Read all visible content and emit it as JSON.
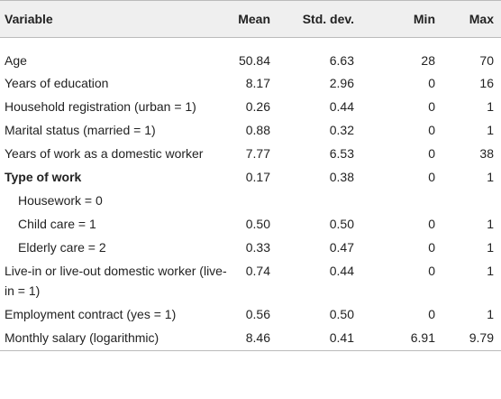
{
  "table": {
    "header": [
      "Variable",
      "Mean",
      "Std. dev.",
      "Min",
      "Max"
    ],
    "rows": [
      [
        "Age",
        "50.84",
        "6.63",
        "28",
        "70"
      ],
      [
        "Years of education",
        "8.17",
        "2.96",
        "0",
        "16"
      ],
      [
        "Household registration (urban = 1)",
        "0.26",
        "0.44",
        "0",
        "1"
      ],
      [
        "Marital status (married = 1)",
        "0.88",
        "0.32",
        "0",
        "1"
      ],
      [
        "Years of work as a domestic worker",
        "7.77",
        "6.53",
        "0",
        "38"
      ],
      [
        "Type of work",
        "0.17",
        "0.38",
        "0",
        "1"
      ],
      [
        "Housework = 0",
        "",
        "",
        "",
        ""
      ],
      [
        "Child care = 1",
        "0.50",
        "0.50",
        "0",
        "1"
      ],
      [
        "Elderly care = 2",
        "0.33",
        "0.47",
        "0",
        "1"
      ],
      [
        "Live-in or live-out domestic worker (live-in = 1)",
        "0.74",
        "0.44",
        "0",
        "1"
      ],
      [
        "Employment contract (yes = 1)",
        "0.56",
        "0.50",
        "0",
        "1"
      ],
      [
        "Monthly salary (logarithmic)",
        "8.46",
        "0.41",
        "6.91",
        "9.79"
      ]
    ]
  }
}
